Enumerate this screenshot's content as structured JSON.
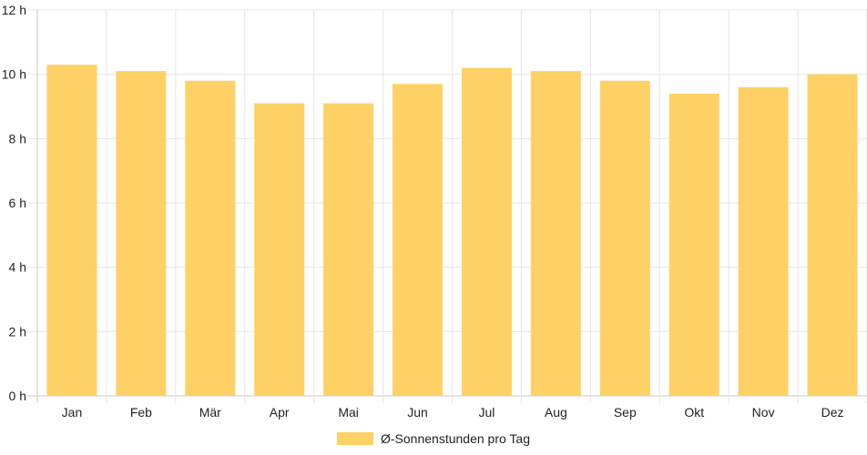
{
  "chart_data": {
    "type": "bar",
    "categories": [
      "Jan",
      "Feb",
      "Mär",
      "Apr",
      "Mai",
      "Jun",
      "Jul",
      "Aug",
      "Sep",
      "Okt",
      "Nov",
      "Dez"
    ],
    "series": [
      {
        "name": "Ø-Sonnenstunden pro Tag",
        "values": [
          10.3,
          10.1,
          9.8,
          9.1,
          9.1,
          9.7,
          10.2,
          10.1,
          9.8,
          9.4,
          9.6,
          10.0
        ]
      }
    ],
    "yticks": [
      "0 h",
      "2 h",
      "4 h",
      "6 h",
      "8 h",
      "10 h",
      "12 h"
    ],
    "ylim": [
      0,
      12
    ],
    "grid": true,
    "legend_position": "bottom",
    "colors": {
      "bar": "#fdd166",
      "grid": "#e6e6e6",
      "axis": "#c8c8c8"
    }
  }
}
